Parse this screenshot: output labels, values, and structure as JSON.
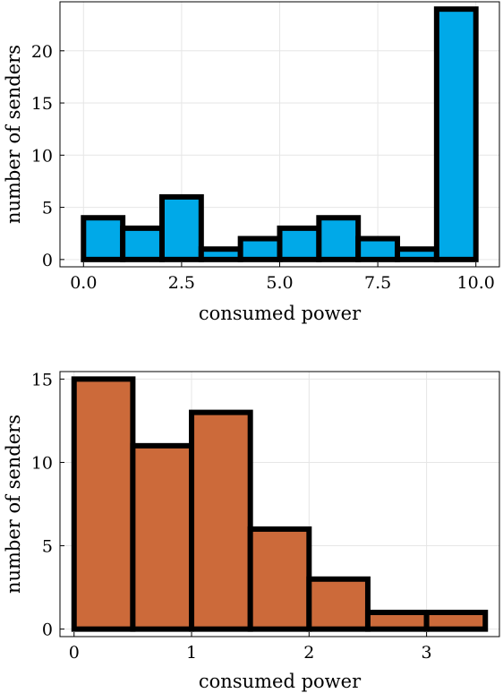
{
  "chart_data": [
    {
      "type": "bar",
      "bin_edges": [
        0,
        1,
        2,
        3,
        4,
        5,
        6,
        7,
        8,
        9,
        10
      ],
      "values": [
        4,
        3,
        6,
        1,
        2,
        3,
        4,
        2,
        1,
        24
      ],
      "color": "#00a9e8",
      "xlabel": "consumed power",
      "ylabel": "number of senders",
      "xticks": [
        0,
        2.5,
        5,
        7.5,
        10
      ],
      "xticklabels": [
        "0.0",
        "2.5",
        "5.0",
        "7.5",
        "10.0"
      ],
      "yticks": [
        0,
        5,
        10,
        15,
        20
      ],
      "yticklabels": [
        "0",
        "5",
        "10",
        "15",
        "20"
      ],
      "xlim": [
        -0.6,
        10.6
      ],
      "ylim": [
        -0.7,
        24.7
      ],
      "grid": true,
      "legend": "none"
    },
    {
      "type": "bar",
      "bin_edges": [
        0,
        0.5,
        1,
        1.5,
        2,
        2.5,
        3,
        3.5
      ],
      "values": [
        15,
        11,
        13,
        6,
        3,
        1,
        1
      ],
      "color": "#cc6a3a",
      "xlabel": "consumed power",
      "ylabel": "number of senders",
      "xticks": [
        0,
        1,
        2,
        3
      ],
      "xticklabels": [
        "0",
        "1",
        "2",
        "3"
      ],
      "yticks": [
        0,
        5,
        10,
        15
      ],
      "yticklabels": [
        "0",
        "5",
        "10",
        "15"
      ],
      "xlim": [
        -0.12,
        3.62
      ],
      "ylim": [
        -0.45,
        15.45
      ],
      "grid": true,
      "legend": "none"
    }
  ]
}
